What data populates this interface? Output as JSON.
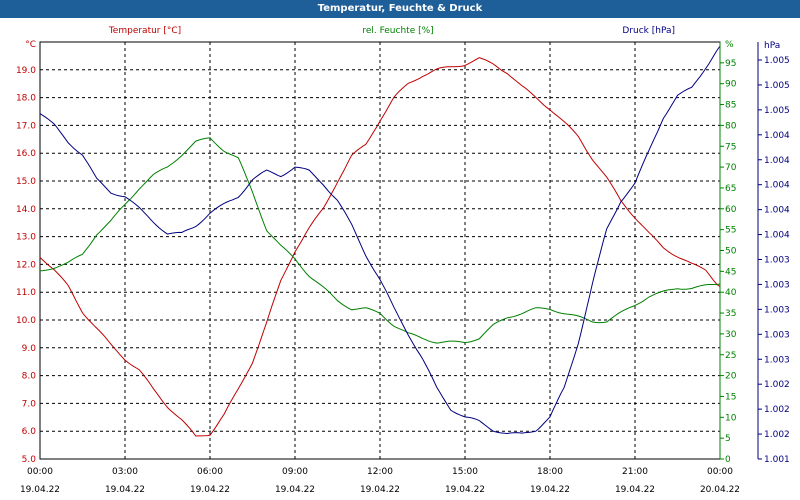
{
  "title": "Temperatur, Feuchte & Druck",
  "chart_data": {
    "type": "line",
    "x_ticks": [
      "00:00",
      "03:00",
      "06:00",
      "09:00",
      "12:00",
      "15:00",
      "18:00",
      "21:00",
      "00:00"
    ],
    "x_dates": [
      "19.04.22",
      "19.04.22",
      "19.04.22",
      "19.04.22",
      "19.04.22",
      "19.04.22",
      "19.04.22",
      "19.04.22",
      "20.04.22"
    ],
    "x_range_hours": [
      0,
      24
    ],
    "grid": true,
    "axes": {
      "temperature": {
        "unit_label": "°C",
        "label": "Temperatur [°C]",
        "color": "#c00000",
        "ylim": [
          5.0,
          20.0
        ],
        "ticks": [
          "19.0",
          "18.0",
          "17.0",
          "16.0",
          "15.0",
          "14.0",
          "13.0",
          "12.0",
          "11.0",
          "10.0",
          "9.0",
          "8.0",
          "7.0",
          "6.0",
          "5.0"
        ]
      },
      "humidity": {
        "unit_label": "%",
        "label": "rel. Feuchte [%]",
        "color": "#008000",
        "ylim": [
          0,
          100
        ],
        "ticks": [
          "95",
          "90",
          "85",
          "80",
          "75",
          "70",
          "65",
          "60",
          "55",
          "50",
          "45",
          "40",
          "35",
          "30",
          "25",
          "20",
          "15",
          "10",
          "5",
          "0"
        ]
      },
      "pressure": {
        "unit_label": "hPa",
        "label": "Druck [hPa]",
        "color": "#000080",
        "ticks": [
          "1.005",
          "1.005",
          "1.005",
          "1.004",
          "1.004",
          "1.004",
          "1.004",
          "1.004",
          "1.003",
          "1.003",
          "1.003",
          "1.003",
          "1.003",
          "1.002",
          "1.002",
          "1.002",
          "1.001"
        ]
      }
    },
    "series": [
      {
        "name": "Temperatur [°C]",
        "axis": "temperature",
        "color": "#c00000",
        "x": [
          0,
          0.5,
          1,
          1.5,
          2,
          2.5,
          3,
          3.5,
          4,
          4.5,
          5,
          5.5,
          6,
          6.5,
          7,
          7.5,
          8,
          8.5,
          9,
          9.5,
          10,
          10.5,
          11,
          11.5,
          12,
          12.5,
          13,
          13.5,
          14,
          14.5,
          15,
          15.5,
          16,
          16.5,
          17,
          17.5,
          18,
          18.5,
          19,
          19.5,
          20,
          20.5,
          21,
          21.5,
          22,
          22.5,
          23,
          23.5,
          24
        ],
        "values": [
          12.3,
          11.8,
          11.2,
          10.3,
          9.7,
          9.1,
          8.6,
          8.2,
          7.5,
          6.9,
          6.4,
          5.8,
          5.9,
          6.6,
          7.5,
          8.5,
          9.9,
          11.4,
          12.5,
          13.3,
          14.0,
          15.0,
          15.9,
          16.3,
          17.2,
          18.0,
          18.5,
          18.8,
          19.0,
          19.1,
          19.2,
          19.4,
          19.2,
          18.9,
          18.4,
          18.0,
          17.6,
          17.1,
          16.6,
          15.8,
          15.1,
          14.3,
          13.7,
          13.1,
          12.6,
          12.3,
          12.0,
          11.8,
          11.2
        ]
      },
      {
        "name": "rel. Feuchte [%]",
        "axis": "humidity",
        "color": "#008000",
        "x": [
          0,
          0.5,
          1,
          1.5,
          2,
          2.5,
          3,
          3.5,
          4,
          4.5,
          5,
          5.5,
          6,
          6.5,
          7,
          7.5,
          8,
          8.5,
          9,
          9.5,
          10,
          10.5,
          11,
          11.5,
          12,
          12.5,
          13,
          13.5,
          14,
          14.5,
          15,
          15.5,
          16,
          16.5,
          17,
          17.5,
          18,
          18.5,
          19,
          19.5,
          20,
          20.5,
          21,
          21.5,
          22,
          22.5,
          23,
          23.5,
          24
        ],
        "values": [
          45,
          46,
          47,
          49,
          54,
          57,
          61,
          65,
          68,
          70,
          73,
          76,
          77,
          74,
          72,
          64,
          55,
          51,
          48,
          44,
          41,
          38,
          36,
          36,
          35,
          32,
          30,
          29,
          28,
          28,
          28,
          29,
          32,
          34,
          35,
          36,
          36,
          35,
          34,
          33,
          33,
          35,
          37,
          39,
          40,
          41,
          41,
          41.5,
          42
        ]
      },
      {
        "name": "Druck [hPa]",
        "axis": "pressure",
        "color": "#000080",
        "x": [
          0,
          0.5,
          1,
          1.5,
          2,
          2.5,
          3,
          3.5,
          4,
          4.5,
          5,
          5.5,
          6,
          6.5,
          7,
          7.5,
          8,
          8.5,
          9,
          9.5,
          10,
          10.5,
          11,
          11.5,
          12,
          12.5,
          13,
          13.5,
          14,
          14.5,
          15,
          15.5,
          16,
          16.5,
          17,
          17.5,
          18,
          18.5,
          19,
          19.5,
          20,
          20.5,
          21,
          21.5,
          22,
          22.5,
          23,
          23.5,
          24
        ],
        "values_percent_of_axis": [
          83,
          80,
          76,
          73,
          67,
          64,
          63,
          60,
          57,
          54,
          54,
          56,
          59,
          61,
          63,
          67,
          69,
          68,
          70,
          69,
          66,
          62,
          56,
          49,
          43,
          36,
          30,
          24,
          17,
          12,
          10,
          9,
          7,
          6,
          6,
          7,
          10,
          17,
          28,
          42,
          55,
          62,
          66,
          74,
          82,
          87,
          89,
          94,
          99
        ]
      }
    ]
  }
}
